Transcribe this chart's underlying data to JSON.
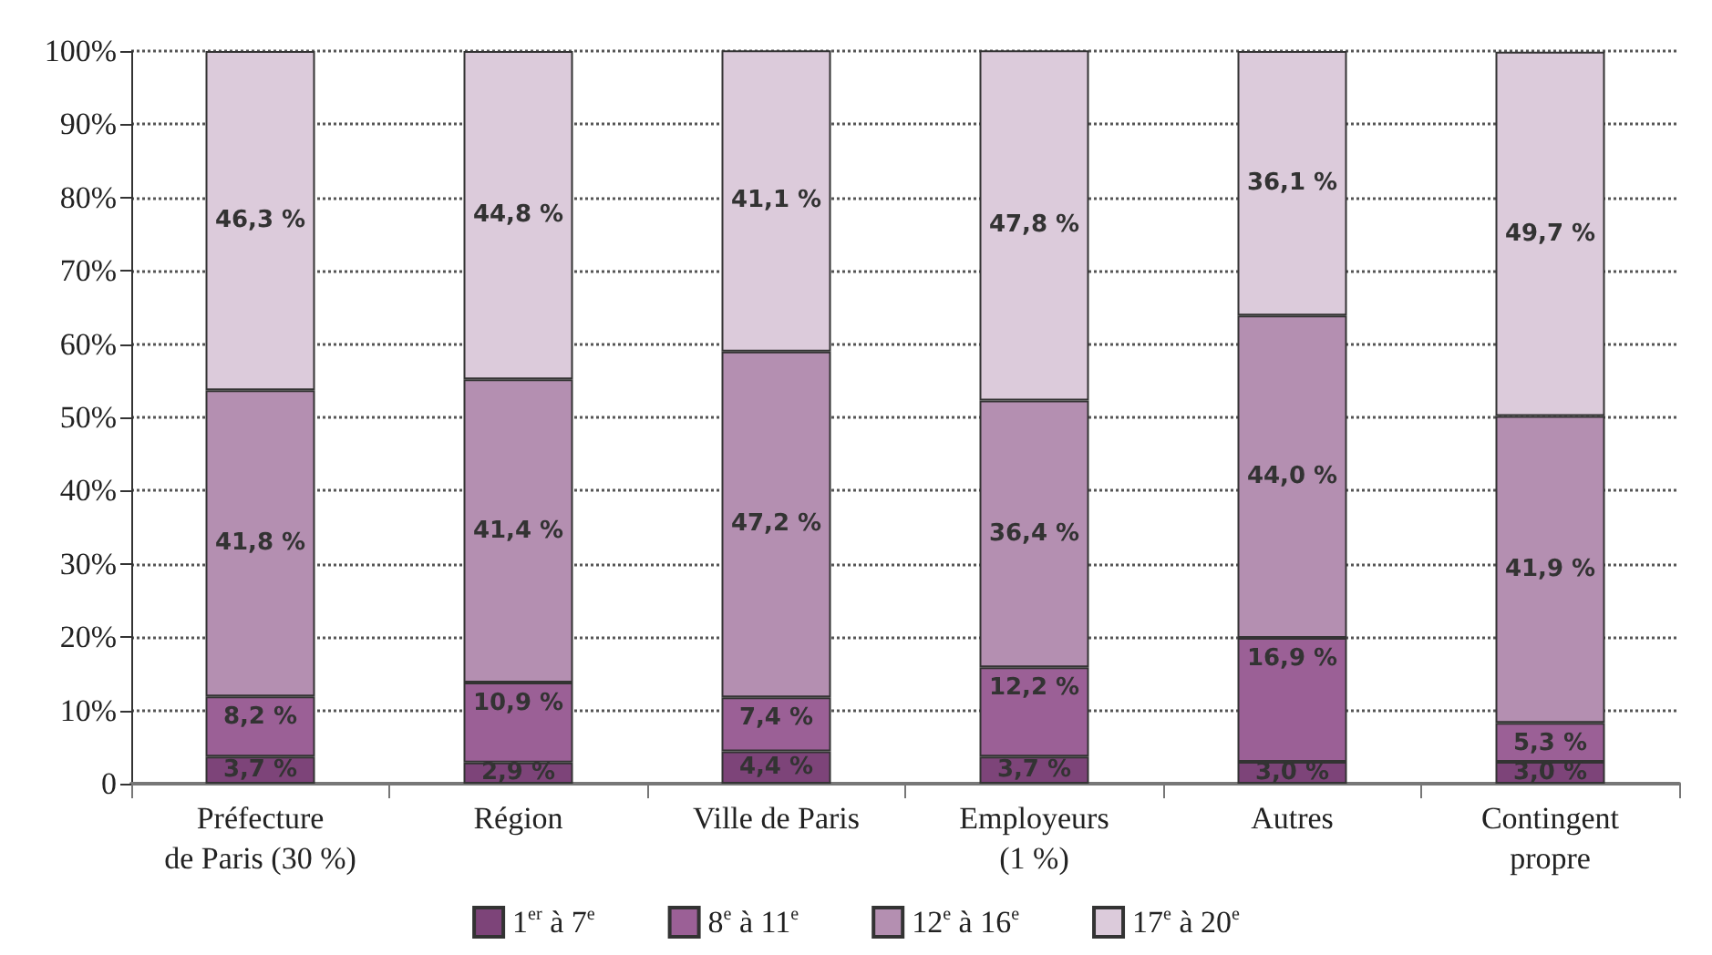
{
  "chart_data": {
    "type": "bar",
    "stacked": true,
    "categories": [
      "Préfecture\nde Paris (30 %)",
      "Région",
      "Ville de Paris",
      "Employeurs\n(1 %)",
      "Autres",
      "Contingent\npropre"
    ],
    "series": [
      {
        "name": "1$^{er}$ à 7$^{e}$",
        "color": "#7d4479",
        "values": [
          3.7,
          2.9,
          4.4,
          3.7,
          3.0,
          3.0
        ],
        "value_labels": [
          "3,7 %",
          "2,9 %",
          "4,4 %",
          "3,7 %",
          "3,0 %",
          "3,0 %"
        ]
      },
      {
        "name": "8$^{e}$ à 11$^{e}$",
        "color": "#9b6096",
        "values": [
          8.2,
          10.9,
          7.4,
          12.2,
          16.9,
          5.3
        ],
        "value_labels": [
          "8,2 %",
          "10,9 %",
          "7,4 %",
          "12,2 %",
          "16,9 %",
          "5,3 %"
        ]
      },
      {
        "name": "12$^{e}$ à 16$^{e}$",
        "color": "#b48fb1",
        "values": [
          41.8,
          41.4,
          47.2,
          36.4,
          44.0,
          41.9
        ],
        "value_labels": [
          "41,8 %",
          "41,4 %",
          "47,2 %",
          "36,4 %",
          "44,0 %",
          "41,9 %"
        ]
      },
      {
        "name": "17$^{e}$ à 20$^{e}$",
        "color": "#dccbdb",
        "values": [
          46.3,
          44.8,
          41.1,
          47.8,
          36.1,
          49.7
        ],
        "value_labels": [
          "46,3 %",
          "44,8 %",
          "41,1 %",
          "47,8 %",
          "36,1 %",
          "49,7 %"
        ]
      }
    ],
    "ylim": [
      0,
      100
    ],
    "yticks": [
      0,
      {
        "value": 10,
        "label": "10%"
      },
      {
        "value": 20,
        "label": "20%"
      },
      {
        "value": 30,
        "label": "30%"
      },
      {
        "value": 40,
        "label": "40%"
      },
      {
        "value": 50,
        "label": "50%"
      },
      {
        "value": 60,
        "label": "60%"
      },
      {
        "value": 70,
        "label": "70%"
      },
      {
        "value": 80,
        "label": "80%"
      },
      {
        "value": 90,
        "label": "90%"
      },
      {
        "value": 100,
        "label": "100%"
      }
    ],
    "grid": "y",
    "legend": "bottom"
  }
}
